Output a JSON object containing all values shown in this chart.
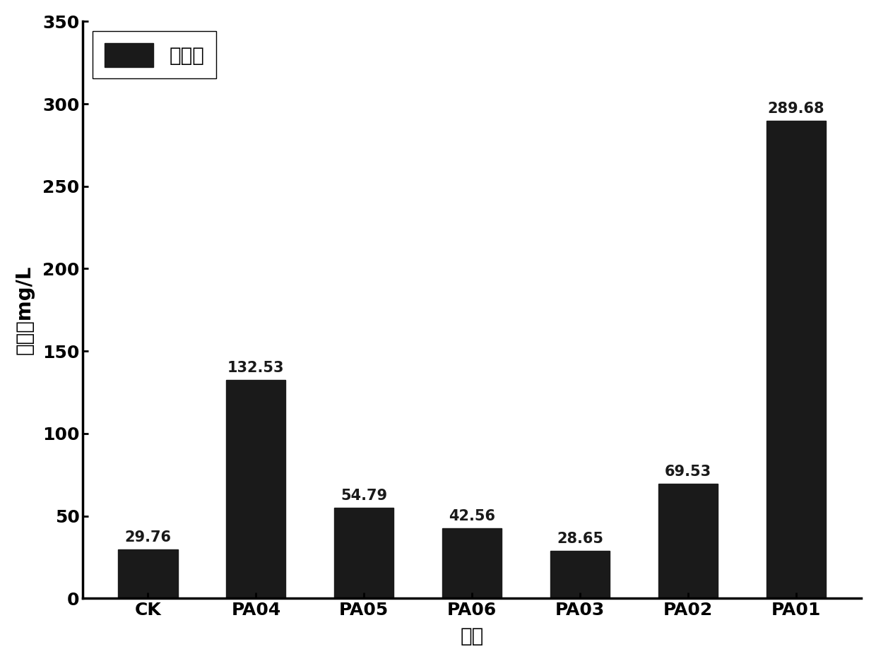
{
  "categories": [
    "CK",
    "PA04",
    "PA05",
    "PA06",
    "PA03",
    "PA02",
    "PA01"
  ],
  "values": [
    29.76,
    132.53,
    54.79,
    42.56,
    28.65,
    69.53,
    289.68
  ],
  "bar_color": "#1a1a1a",
  "ylabel": "解磷量mg/L",
  "xlabel": "菌株",
  "legend_label": "解磷量",
  "ylim": [
    0,
    350
  ],
  "yticks": [
    0,
    50,
    100,
    150,
    200,
    250,
    300,
    350
  ],
  "label_fontsize": 20,
  "tick_fontsize": 18,
  "value_fontsize": 15,
  "legend_fontsize": 20,
  "background_color": "#ffffff"
}
